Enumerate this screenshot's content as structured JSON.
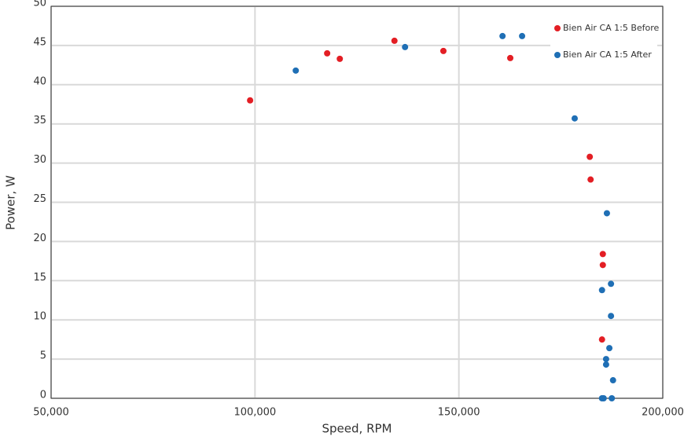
{
  "chart_data": {
    "type": "scatter",
    "x_label": "Speed, RPM",
    "y_label": "Power, W",
    "xlim": [
      50000,
      200000
    ],
    "xticks": [
      {
        "value": 50000,
        "label": "50,000"
      },
      {
        "value": 100000,
        "label": "100,000"
      },
      {
        "value": 150000,
        "label": "150,000"
      },
      {
        "value": 200000,
        "label": "200,000"
      }
    ],
    "ylim": [
      0,
      50
    ],
    "yticks": [
      0,
      5,
      10,
      15,
      20,
      25,
      30,
      35,
      40,
      45,
      50
    ],
    "grid": true,
    "legend": "upper right",
    "series": [
      {
        "name": "Bien Air CA 1:5 Before",
        "color": "#e31e24",
        "x": [
          98800,
          117700,
          120800,
          134200,
          146200,
          162600,
          182100,
          182300,
          185300,
          185300,
          185100
        ],
        "values": [
          38.0,
          44.0,
          43.3,
          45.6,
          44.3,
          43.4,
          30.8,
          27.9,
          18.4,
          17.0,
          7.5
        ]
      },
      {
        "name": "Bien Air CA 1:5 After",
        "color": "#1f6fb5",
        "x": [
          110000,
          136800,
          160700,
          165500,
          178400,
          186300,
          187300,
          185100,
          187300,
          186900,
          186100,
          186100,
          187800,
          185100,
          185500,
          187500
        ],
        "values": [
          41.8,
          44.8,
          46.2,
          46.2,
          35.7,
          23.6,
          14.6,
          13.8,
          10.5,
          6.4,
          5.0,
          4.3,
          2.3,
          0,
          0,
          0
        ]
      }
    ]
  }
}
